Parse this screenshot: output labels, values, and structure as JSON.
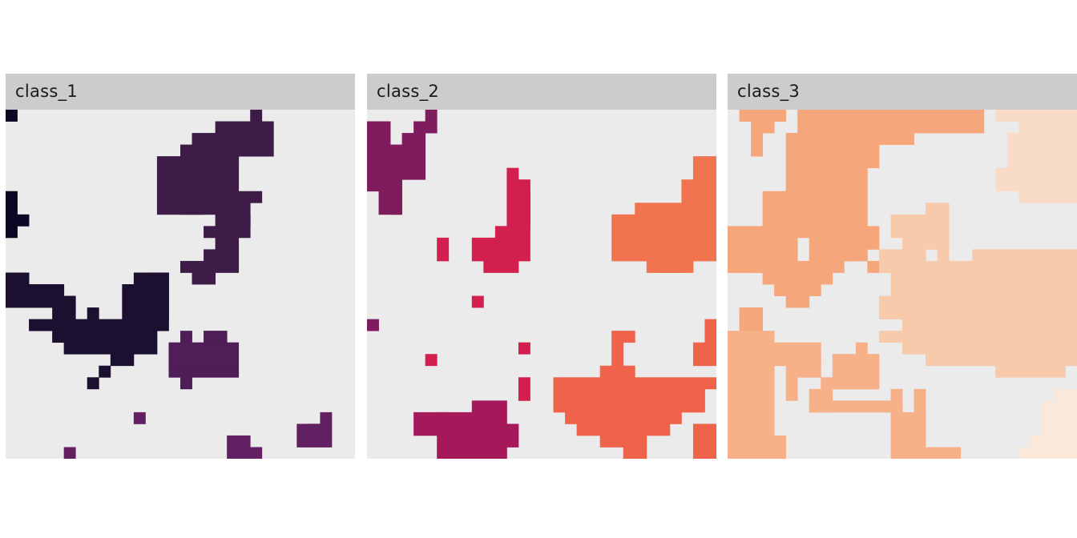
{
  "colors": {
    "panel_background": "#ebebeb",
    "strip_background": "#cccccc",
    "page_background": "#ffffff"
  },
  "chart_data": {
    "type": "heatmap",
    "grid": {
      "rows": 30,
      "cols": 30
    },
    "panels": [
      {
        "label": "class_1",
        "patches": [
          {
            "color": "#0b0825",
            "rects": [
              [
                0,
                0,
                1,
                1
              ],
              [
                0,
                7,
                1,
                4
              ],
              [
                1,
                9,
                1,
                1
              ]
            ]
          },
          {
            "color": "#1c1030",
            "rects": [
              [
                0,
                14,
                2,
                3
              ],
              [
                2,
                15,
                3,
                2
              ],
              [
                4,
                16,
                2,
                2
              ],
              [
                2,
                18,
                5,
                1
              ],
              [
                4,
                19,
                9,
                1
              ],
              [
                5,
                20,
                8,
                1
              ],
              [
                7,
                17,
                1,
                3
              ],
              [
                8,
                18,
                6,
                1
              ],
              [
                10,
                15,
                4,
                3
              ],
              [
                11,
                14,
                3,
                1
              ],
              [
                9,
                21,
                2,
                1
              ],
              [
                12,
                14,
                2,
                4
              ],
              [
                7,
                23,
                1,
                1
              ],
              [
                8,
                22,
                1,
                1
              ]
            ]
          },
          {
            "color": "#3d1d48",
            "rects": [
              [
                13,
                4,
                6,
                5
              ],
              [
                15,
                3,
                5,
                4
              ],
              [
                16,
                2,
                4,
                3
              ],
              [
                18,
                1,
                2,
                2
              ],
              [
                21,
                0,
                1,
                2
              ],
              [
                20,
                1,
                3,
                3
              ],
              [
                14,
                7,
                8,
                1
              ],
              [
                15,
                8,
                2,
                1
              ],
              [
                18,
                8,
                3,
                2
              ],
              [
                17,
                10,
                3,
                1
              ],
              [
                19,
                9,
                2,
                2
              ],
              [
                18,
                11,
                2,
                2
              ],
              [
                17,
                12,
                2,
                1
              ],
              [
                15,
                13,
                5,
                1
              ],
              [
                16,
                14,
                2,
                1
              ]
            ]
          },
          {
            "color": "#4f1d58",
            "rects": [
              [
                14,
                20,
                6,
                2
              ],
              [
                15,
                19,
                1,
                1
              ],
              [
                17,
                19,
                2,
                1
              ],
              [
                14,
                22,
                6,
                1
              ],
              [
                15,
                23,
                1,
                1
              ]
            ]
          },
          {
            "color": "#621f61",
            "rects": [
              [
                11,
                26,
                1,
                1
              ],
              [
                19,
                28,
                2,
                2
              ],
              [
                20,
                29,
                2,
                1
              ],
              [
                26,
                27,
                1,
                1
              ],
              [
                27,
                26,
                1,
                3
              ],
              [
                25,
                27,
                2,
                2
              ],
              [
                5,
                29,
                1,
                1
              ]
            ]
          }
        ]
      },
      {
        "label": "class_2",
        "patches": [
          {
            "color": "#7f1c5e",
            "rects": [
              [
                0,
                1,
                2,
                6
              ],
              [
                2,
                3,
                1,
                5
              ],
              [
                1,
                7,
                2,
                2
              ],
              [
                2,
                8,
                1,
                1
              ],
              [
                3,
                2,
                2,
                4
              ],
              [
                4,
                1,
                1,
                1
              ],
              [
                5,
                0,
                1,
                2
              ],
              [
                0,
                18,
                1,
                1
              ]
            ]
          },
          {
            "color": "#d21f4d",
            "rects": [
              [
                12,
                5,
                1,
                1
              ],
              [
                12,
                6,
                2,
                7
              ],
              [
                13,
                7,
                1,
                3
              ],
              [
                11,
                10,
                2,
                3
              ],
              [
                9,
                11,
                4,
                2
              ],
              [
                10,
                12,
                3,
                2
              ],
              [
                6,
                11,
                1,
                2
              ],
              [
                9,
                16,
                1,
                1
              ],
              [
                13,
                20,
                1,
                1
              ],
              [
                13,
                23,
                1,
                2
              ],
              [
                5,
                21,
                1,
                1
              ]
            ]
          },
          {
            "color": "#a5185a",
            "rects": [
              [
                4,
                26,
                3,
                2
              ],
              [
                6,
                26,
                3,
                3
              ],
              [
                8,
                27,
                5,
                2
              ],
              [
                9,
                25,
                3,
                3
              ],
              [
                6,
                29,
                6,
                1
              ]
            ]
          },
          {
            "color": "#f1734f",
            "rects": [
              [
                28,
                4,
                2,
                6
              ],
              [
                27,
                6,
                3,
                4
              ],
              [
                23,
                9,
                7,
                3
              ],
              [
                21,
                9,
                9,
                4
              ],
              [
                23,
                8,
                4,
                1
              ],
              [
                24,
                13,
                3,
                1
              ],
              [
                25,
                10,
                3,
                4
              ]
            ]
          },
          {
            "color": "#ee6349",
            "rects": [
              [
                21,
                19,
                2,
                1
              ],
              [
                21,
                20,
                1,
                2
              ],
              [
                20,
                22,
                3,
                1
              ],
              [
                16,
                23,
                14,
                1
              ],
              [
                16,
                24,
                13,
                2
              ],
              [
                17,
                26,
                10,
                1
              ],
              [
                18,
                27,
                8,
                1
              ],
              [
                20,
                28,
                4,
                1
              ],
              [
                22,
                29,
                2,
                1
              ],
              [
                29,
                18,
                1,
                3
              ],
              [
                28,
                20,
                2,
                2
              ],
              [
                28,
                27,
                2,
                3
              ]
            ]
          }
        ]
      },
      {
        "label": "class_3",
        "patches": [
          {
            "color": "#f5a67b",
            "rects": [
              [
                1,
                0,
                4,
                1
              ],
              [
                2,
                1,
                2,
                1
              ],
              [
                2,
                2,
                1,
                2
              ],
              [
                6,
                0,
                16,
                2
              ],
              [
                5,
                2,
                11,
                1
              ],
              [
                5,
                3,
                8,
                2
              ],
              [
                5,
                5,
                7,
                2
              ],
              [
                3,
                7,
                9,
                3
              ],
              [
                0,
                10,
                12,
                1
              ],
              [
                0,
                11,
                6,
                3
              ],
              [
                7,
                11,
                4,
                2
              ],
              [
                2,
                13,
                8,
                1
              ],
              [
                3,
                14,
                6,
                1
              ],
              [
                4,
                15,
                4,
                1
              ],
              [
                5,
                16,
                2,
                1
              ],
              [
                1,
                17,
                2,
                2
              ],
              [
                7,
                10,
                2,
                1
              ],
              [
                9,
                12,
                3,
                1
              ],
              [
                10,
                10,
                3,
                2
              ],
              [
                12,
                13,
                2,
                1
              ]
            ]
          },
          {
            "color": "#f6b189",
            "rects": [
              [
                0,
                19,
                4,
                9
              ],
              [
                1,
                19,
                2,
                1
              ],
              [
                0,
                28,
                5,
                2
              ],
              [
                4,
                20,
                4,
                2
              ],
              [
                6,
                21,
                2,
                2
              ],
              [
                5,
                21,
                1,
                4
              ],
              [
                7,
                24,
                2,
                2
              ],
              [
                8,
                23,
                5,
                1
              ],
              [
                7,
                25,
                8,
                1
              ],
              [
                9,
                21,
                4,
                3
              ],
              [
                10,
                22,
                3,
                1
              ],
              [
                14,
                24,
                1,
                3
              ],
              [
                15,
                26,
                2,
                2
              ],
              [
                14,
                27,
                3,
                2
              ],
              [
                14,
                29,
                6,
                1
              ],
              [
                16,
                24,
                1,
                4
              ],
              [
                11,
                20,
                1,
                1
              ],
              [
                2,
                26,
                2,
                1
              ]
            ]
          },
          {
            "color": "#f6caab",
            "rects": [
              [
                14,
                9,
                5,
                2
              ],
              [
                17,
                8,
                2,
                2
              ],
              [
                15,
                10,
                4,
                2
              ],
              [
                13,
                12,
                4,
                2
              ],
              [
                14,
                13,
                2,
                1
              ],
              [
                18,
                11,
                1,
                2
              ],
              [
                17,
                13,
                5,
                1
              ],
              [
                14,
                14,
                16,
                4
              ],
              [
                13,
                16,
                10,
                2
              ],
              [
                15,
                18,
                15,
                3
              ],
              [
                13,
                19,
                10,
                1
              ],
              [
                17,
                20,
                2,
                2
              ],
              [
                19,
                21,
                3,
                1
              ],
              [
                22,
                20,
                8,
                2
              ],
              [
                23,
                22,
                6,
                1
              ],
              [
                18,
                13,
                12,
                2
              ],
              [
                21,
                12,
                3,
                1
              ],
              [
                24,
                12,
                6,
                2
              ]
            ]
          },
          {
            "color": "#f8dcc7",
            "rects": [
              [
                23,
                0,
                7,
                1
              ],
              [
                25,
                1,
                5,
                1
              ],
              [
                24,
                2,
                6,
                3
              ],
              [
                23,
                5,
                5,
                2
              ],
              [
                25,
                7,
                5,
                1
              ],
              [
                27,
                5,
                3,
                2
              ]
            ]
          },
          {
            "color": "#fae9db",
            "rects": [
              [
                27,
                25,
                3,
                4
              ],
              [
                28,
                24,
                2,
                1
              ],
              [
                26,
                28,
                4,
                1
              ],
              [
                25,
                29,
                5,
                1
              ]
            ]
          }
        ]
      }
    ]
  }
}
